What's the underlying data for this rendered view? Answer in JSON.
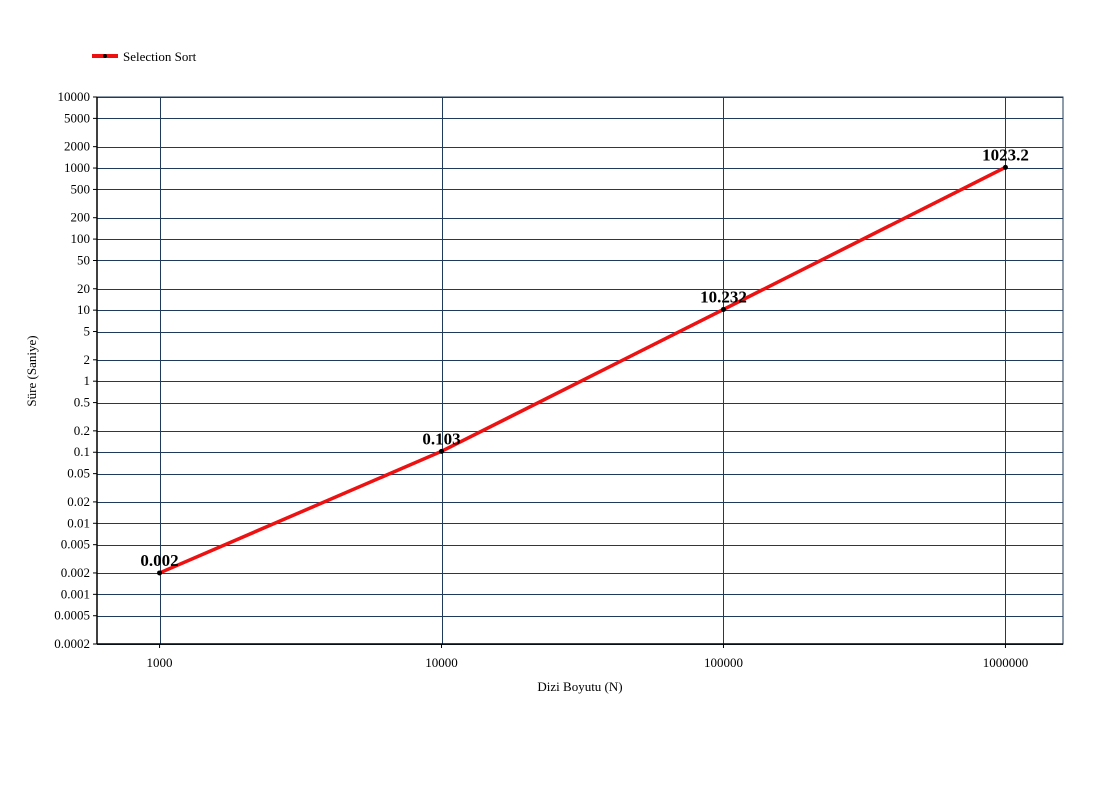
{
  "chart_data": {
    "type": "line",
    "title": "",
    "xlabel": "Dizi Boyutu (N)",
    "ylabel": "Süre (Saniye)",
    "x_scale": "log",
    "y_scale": "log",
    "xlim": [
      600,
      1600000
    ],
    "ylim": [
      0.0002,
      10000
    ],
    "x_ticks": [
      1000,
      10000,
      100000,
      1000000
    ],
    "x_tick_labels": [
      "1000",
      "10000",
      "100000",
      "1000000"
    ],
    "y_ticks": [
      10000,
      5000,
      2000,
      1000,
      500,
      200,
      100,
      50,
      20,
      10,
      5,
      2,
      1,
      0.5,
      0.2,
      0.1,
      0.05,
      0.02,
      0.01,
      0.005,
      0.002,
      0.001,
      0.0005,
      0.0002
    ],
    "y_tick_labels": [
      "10000",
      "5000",
      "2000",
      "1000",
      "500",
      "200",
      "100",
      "50",
      "20",
      "10",
      "5",
      "2",
      "1",
      "0.5",
      "0.2",
      "0.1",
      "0.05",
      "0.02",
      "0.01",
      "0.005",
      "0.002",
      "0.001",
      "0.0005",
      "0.0002"
    ],
    "grid": true,
    "grid_color": "#1f3a5a",
    "legend_position": "top-left",
    "series": [
      {
        "name": "Selection Sort",
        "color": "#ee1111",
        "x": [
          1000,
          10000,
          100000,
          1000000
        ],
        "y": [
          0.002,
          0.103,
          10.232,
          1023.2
        ],
        "labels": [
          "0.002",
          "0.103",
          "10.232",
          "1023.2"
        ]
      }
    ]
  }
}
